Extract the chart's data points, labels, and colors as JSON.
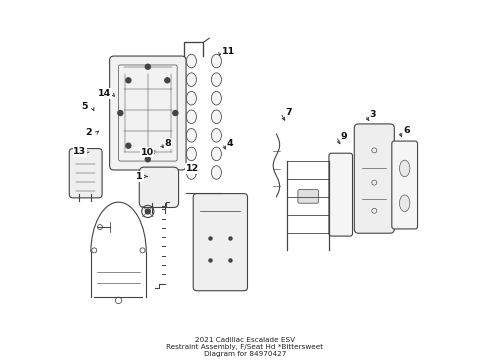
{
  "title": "2021 Cadillac Escalade ESV Restraint Assembly, F/Seat Hd *Bittersweet Diagram for 84970427",
  "background_color": "#ffffff",
  "label_configs": [
    [
      1,
      0.205,
      0.49,
      0.228,
      0.49
    ],
    [
      2,
      0.062,
      0.368,
      0.092,
      0.362
    ],
    [
      3,
      0.858,
      0.318,
      0.853,
      0.342
    ],
    [
      4,
      0.458,
      0.398,
      0.452,
      0.422
    ],
    [
      5,
      0.05,
      0.295,
      0.078,
      0.308
    ],
    [
      6,
      0.953,
      0.362,
      0.943,
      0.388
    ],
    [
      7,
      0.622,
      0.312,
      0.616,
      0.342
    ],
    [
      8,
      0.285,
      0.398,
      0.278,
      0.418
    ],
    [
      9,
      0.778,
      0.378,
      0.77,
      0.408
    ],
    [
      10,
      0.226,
      0.422,
      0.23,
      0.418
    ],
    [
      11,
      0.453,
      0.14,
      0.428,
      0.154
    ],
    [
      12,
      0.353,
      0.468,
      0.356,
      0.492
    ],
    [
      13,
      0.038,
      0.42,
      0.05,
      0.434
    ],
    [
      14,
      0.106,
      0.258,
      0.136,
      0.268
    ]
  ]
}
